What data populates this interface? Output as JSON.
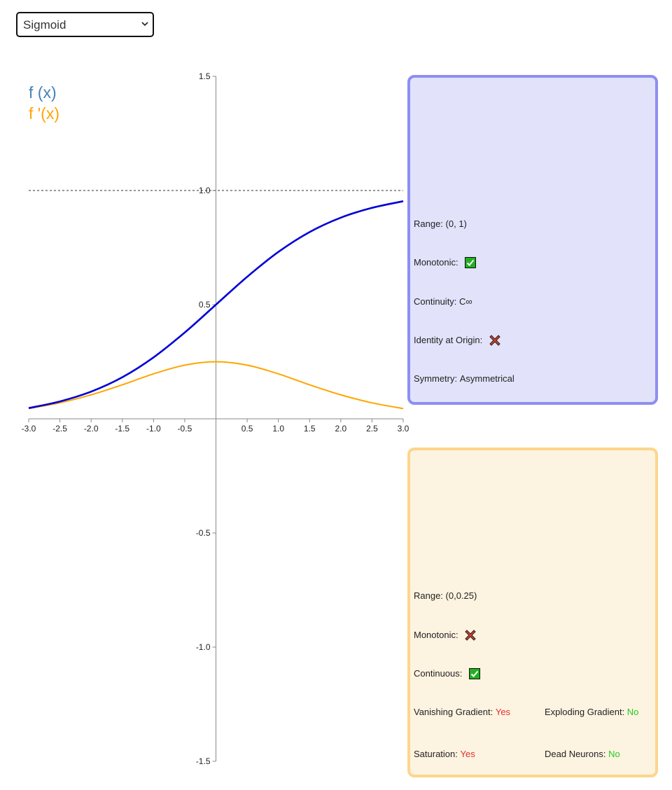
{
  "function_select": {
    "selected": "Sigmoid",
    "options": [
      "Sigmoid"
    ]
  },
  "legend": {
    "f_label": "f (x)",
    "df_label": "f '(x)"
  },
  "colors": {
    "f_curve": "#0000d6",
    "df_curve": "#ffa500",
    "f_legend": "#4682b4",
    "df_legend": "#ffa500",
    "axis": "#888888",
    "asymptote": "#777777",
    "yes_color": "#e03030",
    "no_color": "#22cc22",
    "check_green": "#21b021",
    "cross_red": "#d9402a"
  },
  "function_panel": {
    "range_label": "Range: ",
    "range_value": "(0, 1)",
    "monotonic_label": "Monotonic: ",
    "monotonic_icon": "check-icon",
    "continuity_label": "Continuity: ",
    "continuity_value": "C∞",
    "identity_label": "Identity at Origin: ",
    "identity_icon": "cross-icon",
    "symmetry_label": "Symmetry: ",
    "symmetry_value": "Asymmetrical"
  },
  "derivative_panel": {
    "range_label": "Range: ",
    "range_value": "(0,0.25)",
    "monotonic_label": "Monotonic: ",
    "monotonic_icon": "cross-icon",
    "continuous_label": "Continuous: ",
    "continuous_icon": "check-icon",
    "vanishing_label": "Vanishing Gradient: ",
    "vanishing_value": "Yes",
    "exploding_label": "Exploding Gradient: ",
    "exploding_value": "No",
    "saturation_label": "Saturation: ",
    "saturation_value": "Yes",
    "dead_label": "Dead Neurons: ",
    "dead_value": "No"
  },
  "chart_data": {
    "type": "line",
    "x_range": [
      -3,
      3
    ],
    "y_range": [
      -1.5,
      1.5
    ],
    "x_ticks": [
      -3.0,
      -2.5,
      -2.0,
      -1.5,
      -1.0,
      -0.5,
      0.5,
      1.0,
      1.5,
      2.0,
      2.5,
      3.0
    ],
    "x_tick_labels": [
      "-3.0",
      "-2.5",
      "-2.0",
      "-1.5",
      "-1.0",
      "-0.5",
      "0.5",
      "1.0",
      "1.5",
      "2.0",
      "2.5",
      "3.0"
    ],
    "y_ticks": [
      1.5,
      1.0,
      0.5,
      -0.5,
      -1.0,
      -1.5
    ],
    "y_tick_labels": [
      "1.5",
      "1.0",
      "0.5",
      "-0.5",
      "-1.0",
      "-1.5"
    ],
    "asymptote_y": 1.0,
    "grid": false,
    "series": [
      {
        "name": "f (x)",
        "x": [
          -3.0,
          -2.5,
          -2.0,
          -1.5,
          -1.0,
          -0.5,
          0.0,
          0.5,
          1.0,
          1.5,
          2.0,
          2.5,
          3.0
        ],
        "y": [
          0.047,
          0.076,
          0.119,
          0.182,
          0.269,
          0.378,
          0.5,
          0.622,
          0.731,
          0.818,
          0.881,
          0.924,
          0.953
        ]
      },
      {
        "name": "f '(x)",
        "x": [
          -3.0,
          -2.5,
          -2.0,
          -1.5,
          -1.0,
          -0.5,
          0.0,
          0.5,
          1.0,
          1.5,
          2.0,
          2.5,
          3.0
        ],
        "y": [
          0.045,
          0.07,
          0.105,
          0.149,
          0.197,
          0.235,
          0.25,
          0.235,
          0.197,
          0.149,
          0.105,
          0.07,
          0.045
        ]
      }
    ]
  }
}
